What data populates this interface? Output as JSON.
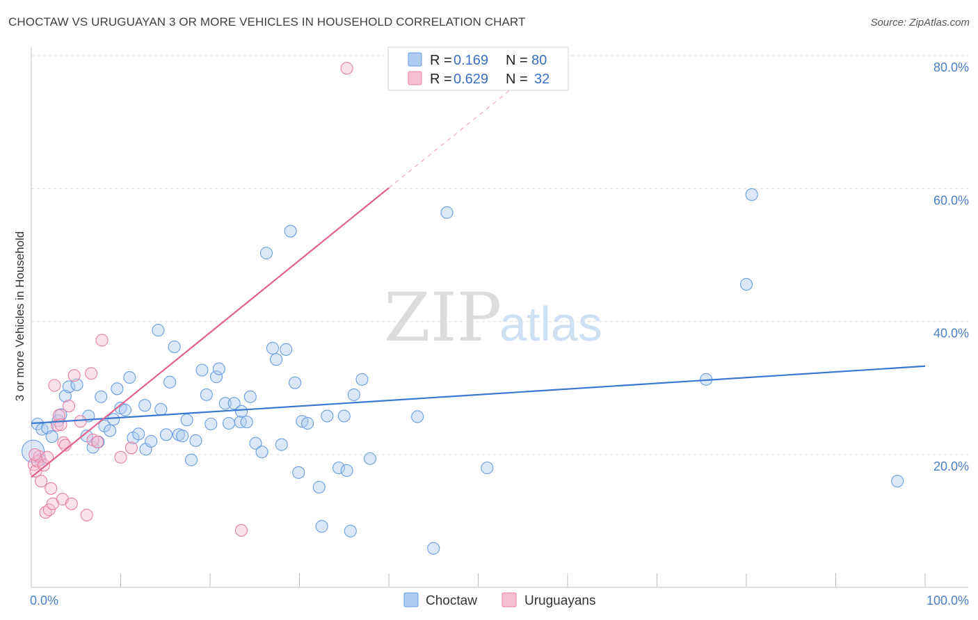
{
  "title": "CHOCTAW VS URUGUAYAN 3 OR MORE VEHICLES IN HOUSEHOLD CORRELATION CHART",
  "source": "Source: ZipAtlas.com",
  "watermark": {
    "zip": "ZIP",
    "atlas": "atlas"
  },
  "colors": {
    "choctaw": "#6a9de0",
    "choctaw_fill": "#aecbf0",
    "uruguayan": "#e87fa3",
    "uruguayan_fill": "#f6bfd2",
    "blue_line": "#3a78d0",
    "pink_line": "#e4608c",
    "grid": "#dedede",
    "tick_text": "#4a7fc8"
  },
  "legend": {
    "rows": [
      {
        "r_label": "R =",
        "r_value": "0.169",
        "n_label": "N =",
        "n_value": "80"
      },
      {
        "r_label": "R =",
        "r_value": "0.629",
        "n_label": "N =",
        "n_value": "32"
      }
    ]
  },
  "bottom_legend": [
    "Choctaw",
    "Uruguayans"
  ],
  "chart_data": {
    "type": "scatter",
    "title": "CHOCTAW VS URUGUAYAN 3 OR MORE VEHICLES IN HOUSEHOLD CORRELATION CHART",
    "xlabel": "",
    "ylabel": "3 or more Vehicles in Household",
    "xlim": [
      0,
      100
    ],
    "ylim": [
      0,
      83
    ],
    "x_tick_labels": [
      "0.0%",
      "100.0%"
    ],
    "y_ticks": [
      20,
      40,
      60,
      80
    ],
    "y_tick_labels": [
      "20.0%",
      "40.0%",
      "60.0%",
      "80.0%"
    ],
    "grid": true,
    "legend_position": "top-center",
    "series": [
      {
        "name": "Choctaw",
        "R": 0.169,
        "N": 80,
        "trend": {
          "x": [
            0,
            100
          ],
          "y": [
            24.7,
            33.3
          ]
        },
        "points": [
          [
            0.2,
            20.5
          ],
          [
            0.7,
            24.6
          ],
          [
            1.2,
            23.8
          ],
          [
            1.8,
            24.0
          ],
          [
            2.3,
            22.7
          ],
          [
            3.0,
            25.1
          ],
          [
            3.3,
            26.0
          ],
          [
            3.8,
            28.8
          ],
          [
            4.2,
            30.2
          ],
          [
            5.1,
            30.5
          ],
          [
            6.2,
            22.8
          ],
          [
            6.4,
            25.8
          ],
          [
            6.9,
            21.1
          ],
          [
            7.5,
            21.9
          ],
          [
            7.8,
            28.7
          ],
          [
            8.2,
            24.3
          ],
          [
            8.8,
            23.6
          ],
          [
            9.2,
            25.3
          ],
          [
            9.6,
            29.9
          ],
          [
            10.0,
            27.0
          ],
          [
            10.5,
            26.7
          ],
          [
            11.0,
            31.6
          ],
          [
            11.4,
            22.5
          ],
          [
            12.0,
            23.1
          ],
          [
            12.7,
            27.4
          ],
          [
            12.8,
            20.8
          ],
          [
            13.4,
            22.0
          ],
          [
            14.2,
            38.7
          ],
          [
            14.5,
            26.8
          ],
          [
            15.1,
            23.0
          ],
          [
            15.5,
            30.9
          ],
          [
            16.0,
            36.2
          ],
          [
            16.5,
            23.0
          ],
          [
            16.9,
            22.8
          ],
          [
            17.4,
            25.2
          ],
          [
            17.9,
            19.2
          ],
          [
            18.4,
            22.1
          ],
          [
            19.1,
            32.7
          ],
          [
            19.6,
            29.0
          ],
          [
            20.1,
            24.6
          ],
          [
            20.7,
            31.7
          ],
          [
            21.0,
            32.9
          ],
          [
            21.7,
            27.7
          ],
          [
            22.1,
            24.7
          ],
          [
            22.7,
            27.7
          ],
          [
            23.4,
            24.9
          ],
          [
            23.5,
            26.5
          ],
          [
            24.1,
            24.9
          ],
          [
            24.5,
            28.7
          ],
          [
            25.1,
            21.7
          ],
          [
            25.8,
            20.4
          ],
          [
            26.3,
            50.3
          ],
          [
            27.0,
            36.0
          ],
          [
            27.4,
            34.3
          ],
          [
            28.0,
            21.5
          ],
          [
            28.5,
            35.8
          ],
          [
            29.0,
            53.6
          ],
          [
            29.5,
            30.8
          ],
          [
            29.9,
            17.3
          ],
          [
            30.3,
            25.0
          ],
          [
            30.9,
            24.7
          ],
          [
            32.2,
            15.1
          ],
          [
            32.5,
            9.2
          ],
          [
            33.1,
            25.8
          ],
          [
            34.4,
            18.0
          ],
          [
            35.0,
            25.8
          ],
          [
            35.3,
            17.6
          ],
          [
            35.7,
            8.5
          ],
          [
            36.1,
            29.0
          ],
          [
            37.0,
            31.3
          ],
          [
            37.9,
            19.4
          ],
          [
            43.2,
            25.7
          ],
          [
            45.0,
            5.9
          ],
          [
            46.5,
            56.4
          ],
          [
            51.0,
            18.0
          ],
          [
            75.5,
            31.3
          ],
          [
            80.0,
            45.6
          ],
          [
            80.6,
            59.1
          ],
          [
            96.9,
            16.0
          ],
          [
            1.0,
            19.2
          ]
        ]
      },
      {
        "name": "Uruguayans",
        "R": 0.629,
        "N": 32,
        "trend": {
          "x": [
            0,
            40
          ],
          "y": [
            16.6,
            60.1
          ]
        },
        "trend_dashed": {
          "x": [
            40,
            54
          ],
          "y": [
            60.1,
            75.3
          ]
        },
        "points": [
          [
            0.3,
            18.5
          ],
          [
            0.5,
            17.5
          ],
          [
            0.7,
            19.0
          ],
          [
            0.9,
            19.7
          ],
          [
            1.1,
            16.0
          ],
          [
            1.4,
            18.4
          ],
          [
            1.6,
            11.3
          ],
          [
            1.8,
            19.6
          ],
          [
            2.0,
            11.7
          ],
          [
            2.2,
            14.9
          ],
          [
            2.4,
            12.6
          ],
          [
            2.6,
            30.4
          ],
          [
            2.9,
            24.4
          ],
          [
            3.1,
            25.9
          ],
          [
            3.3,
            24.5
          ],
          [
            3.5,
            13.3
          ],
          [
            3.6,
            21.8
          ],
          [
            3.8,
            21.4
          ],
          [
            4.2,
            27.3
          ],
          [
            4.5,
            12.6
          ],
          [
            4.8,
            31.9
          ],
          [
            5.5,
            25.0
          ],
          [
            6.2,
            10.9
          ],
          [
            6.7,
            32.2
          ],
          [
            6.9,
            22.2
          ],
          [
            7.4,
            21.9
          ],
          [
            7.9,
            37.2
          ],
          [
            10.0,
            19.6
          ],
          [
            11.2,
            21.0
          ],
          [
            23.5,
            8.6
          ],
          [
            35.3,
            78.1
          ],
          [
            0.4,
            20.0
          ]
        ]
      }
    ]
  }
}
